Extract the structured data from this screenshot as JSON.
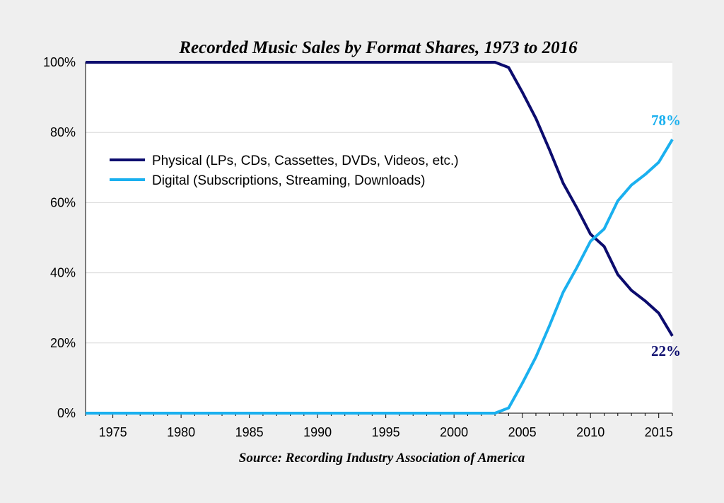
{
  "chart_data": {
    "type": "line",
    "title": "Recorded Music Sales by Format Shares, 1973 to 2016",
    "source": "Source: Recording Industry Association of America",
    "x_range": [
      1973,
      2016
    ],
    "ylim": [
      0,
      100
    ],
    "x_ticks": [
      1975,
      1980,
      1985,
      1990,
      1995,
      2000,
      2005,
      2010,
      2015
    ],
    "y_ticks": [
      0,
      20,
      40,
      60,
      80,
      100
    ],
    "y_tick_labels": [
      "0%",
      "20%",
      "40%",
      "60%",
      "80%",
      "100%"
    ],
    "grid": "horizontal",
    "legend_position": "left-center",
    "series": [
      {
        "name": "Physical (LPs, CDs, Cassettes, DVDs, Videos, etc.)",
        "color": "#0c0c6e",
        "x": [
          1973,
          2003,
          2004,
          2005,
          2006,
          2007,
          2008,
          2009,
          2010,
          2011,
          2012,
          2013,
          2014,
          2015,
          2016
        ],
        "values": [
          100,
          100,
          98.5,
          91.5,
          84,
          75,
          65.5,
          58.5,
          51,
          47.5,
          39.5,
          35,
          32,
          28.5,
          22
        ]
      },
      {
        "name": "Digital (Subscriptions, Streaming, Downloads)",
        "color": "#1ab0ef",
        "x": [
          1973,
          2003,
          2004,
          2005,
          2006,
          2007,
          2008,
          2009,
          2010,
          2011,
          2012,
          2013,
          2014,
          2015,
          2016
        ],
        "values": [
          0,
          0,
          1.5,
          8.5,
          16,
          25,
          34.5,
          41.5,
          49,
          52.5,
          60.5,
          65,
          68,
          71.5,
          78
        ]
      }
    ],
    "annotations": [
      {
        "text": "78%",
        "series": 1,
        "x": 2016,
        "y": 78
      },
      {
        "text": "22%",
        "series": 0,
        "x": 2016,
        "y": 22
      }
    ]
  }
}
